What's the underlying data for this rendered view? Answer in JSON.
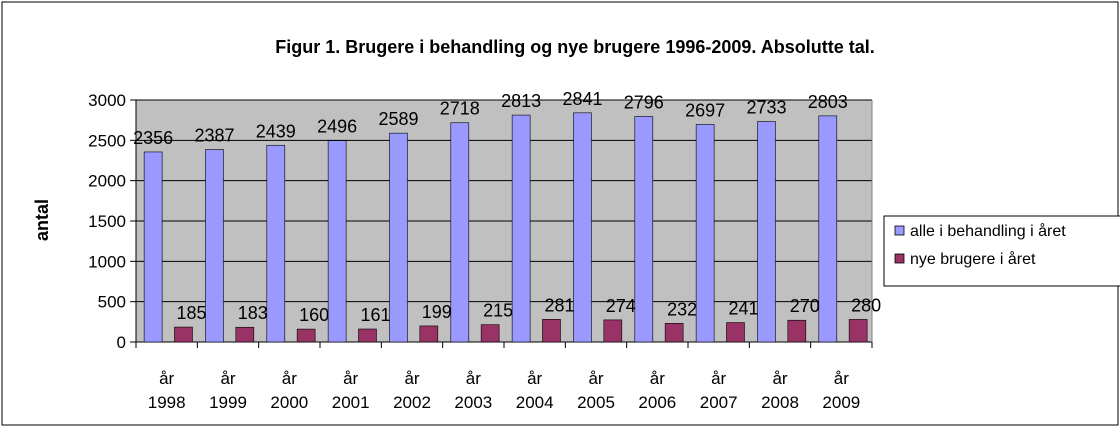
{
  "chart_data": {
    "type": "bar",
    "title": "Figur 1. Brugere i behandling og nye brugere 1996-2009. Absolutte tal.",
    "xlabel": "",
    "ylabel": "antal",
    "ylim": [
      0,
      3000
    ],
    "yticks": [
      "0",
      "500",
      "1000",
      "1500",
      "2000",
      "2500",
      "3000"
    ],
    "grid": true,
    "legend_position": "right",
    "categories": [
      [
        "år",
        "1998"
      ],
      [
        "år",
        "1999"
      ],
      [
        "år",
        "2000"
      ],
      [
        "år",
        "2001"
      ],
      [
        "år",
        "2002"
      ],
      [
        "år",
        "2003"
      ],
      [
        "år",
        "2004"
      ],
      [
        "år",
        "2005"
      ],
      [
        "år",
        "2006"
      ],
      [
        "år",
        "2007"
      ],
      [
        "år",
        "2008"
      ],
      [
        "år",
        "2009"
      ]
    ],
    "series": [
      {
        "name": "alle i behandling i året",
        "color": "#9999FF",
        "values": [
          2356,
          2387,
          2439,
          2496,
          2589,
          2718,
          2813,
          2841,
          2796,
          2697,
          2733,
          2803
        ],
        "labels": [
          "2356",
          "2387",
          "2439",
          "2496",
          "2589",
          "2718",
          "2813",
          "2841",
          "2796",
          "2697",
          "2733",
          "2803"
        ]
      },
      {
        "name": "nye brugere i året",
        "color": "#993366",
        "values": [
          185,
          183,
          160,
          161,
          199,
          215,
          281,
          274,
          232,
          241,
          270,
          280
        ],
        "labels": [
          "185",
          "183",
          "160",
          "161",
          "199",
          "215",
          "281",
          "274",
          "232",
          "241",
          "270",
          "280"
        ]
      }
    ],
    "colors": {
      "plot_area": "#C0C0C0",
      "gridline": "#000000",
      "bar_edge": "#000000",
      "frame": "#000000"
    }
  }
}
